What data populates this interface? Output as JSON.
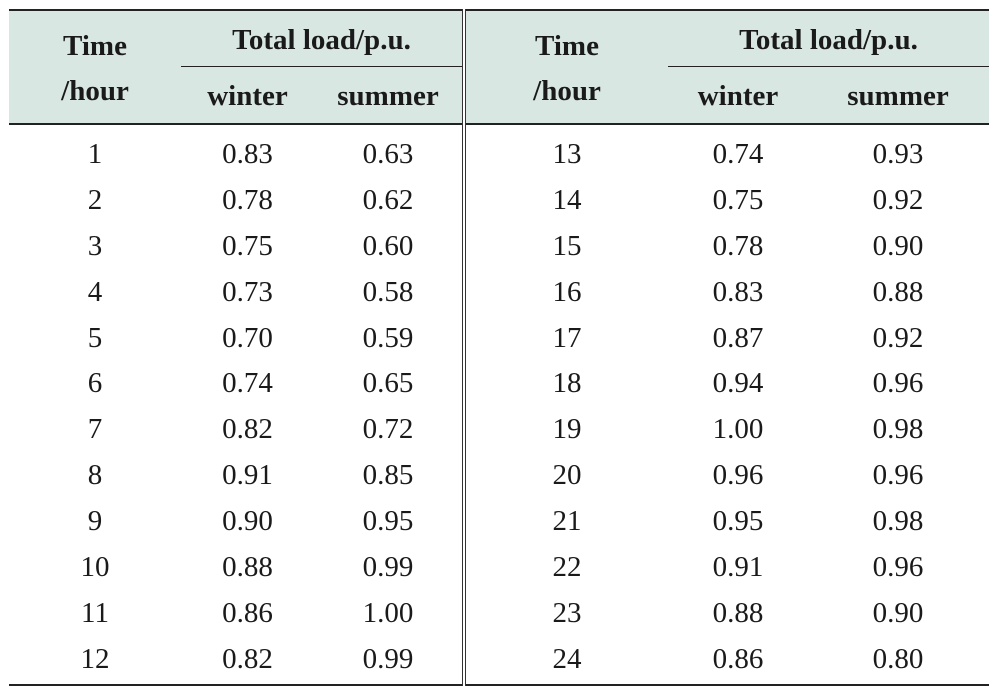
{
  "header": {
    "time_line1": "Time",
    "time_line2": "/hour",
    "total_load": "Total load/p.u.",
    "winter": "winter",
    "summer": "summer"
  },
  "rows_left": [
    {
      "hour": "1",
      "winter": "0.83",
      "summer": "0.63"
    },
    {
      "hour": "2",
      "winter": "0.78",
      "summer": "0.62"
    },
    {
      "hour": "3",
      "winter": "0.75",
      "summer": "0.60"
    },
    {
      "hour": "4",
      "winter": "0.73",
      "summer": "0.58"
    },
    {
      "hour": "5",
      "winter": "0.70",
      "summer": "0.59"
    },
    {
      "hour": "6",
      "winter": "0.74",
      "summer": "0.65"
    },
    {
      "hour": "7",
      "winter": "0.82",
      "summer": "0.72"
    },
    {
      "hour": "8",
      "winter": "0.91",
      "summer": "0.85"
    },
    {
      "hour": "9",
      "winter": "0.90",
      "summer": "0.95"
    },
    {
      "hour": "10",
      "winter": "0.88",
      "summer": "0.99"
    },
    {
      "hour": "11",
      "winter": "0.86",
      "summer": "1.00"
    },
    {
      "hour": "12",
      "winter": "0.82",
      "summer": "0.99"
    }
  ],
  "rows_right": [
    {
      "hour": "13",
      "winter": "0.74",
      "summer": "0.93"
    },
    {
      "hour": "14",
      "winter": "0.75",
      "summer": "0.92"
    },
    {
      "hour": "15",
      "winter": "0.78",
      "summer": "0.90"
    },
    {
      "hour": "16",
      "winter": "0.83",
      "summer": "0.88"
    },
    {
      "hour": "17",
      "winter": "0.87",
      "summer": "0.92"
    },
    {
      "hour": "18",
      "winter": "0.94",
      "summer": "0.96"
    },
    {
      "hour": "19",
      "winter": "1.00",
      "summer": "0.98"
    },
    {
      "hour": "20",
      "winter": "0.96",
      "summer": "0.96"
    },
    {
      "hour": "21",
      "winter": "0.95",
      "summer": "0.98"
    },
    {
      "hour": "22",
      "winter": "0.91",
      "summer": "0.96"
    },
    {
      "hour": "23",
      "winter": "0.88",
      "summer": "0.90"
    },
    {
      "hour": "24",
      "winter": "0.86",
      "summer": "0.80"
    }
  ],
  "colors": {
    "header_fill": "#d9e7e3",
    "rule": "#222222",
    "text": "#1a1a1a"
  }
}
